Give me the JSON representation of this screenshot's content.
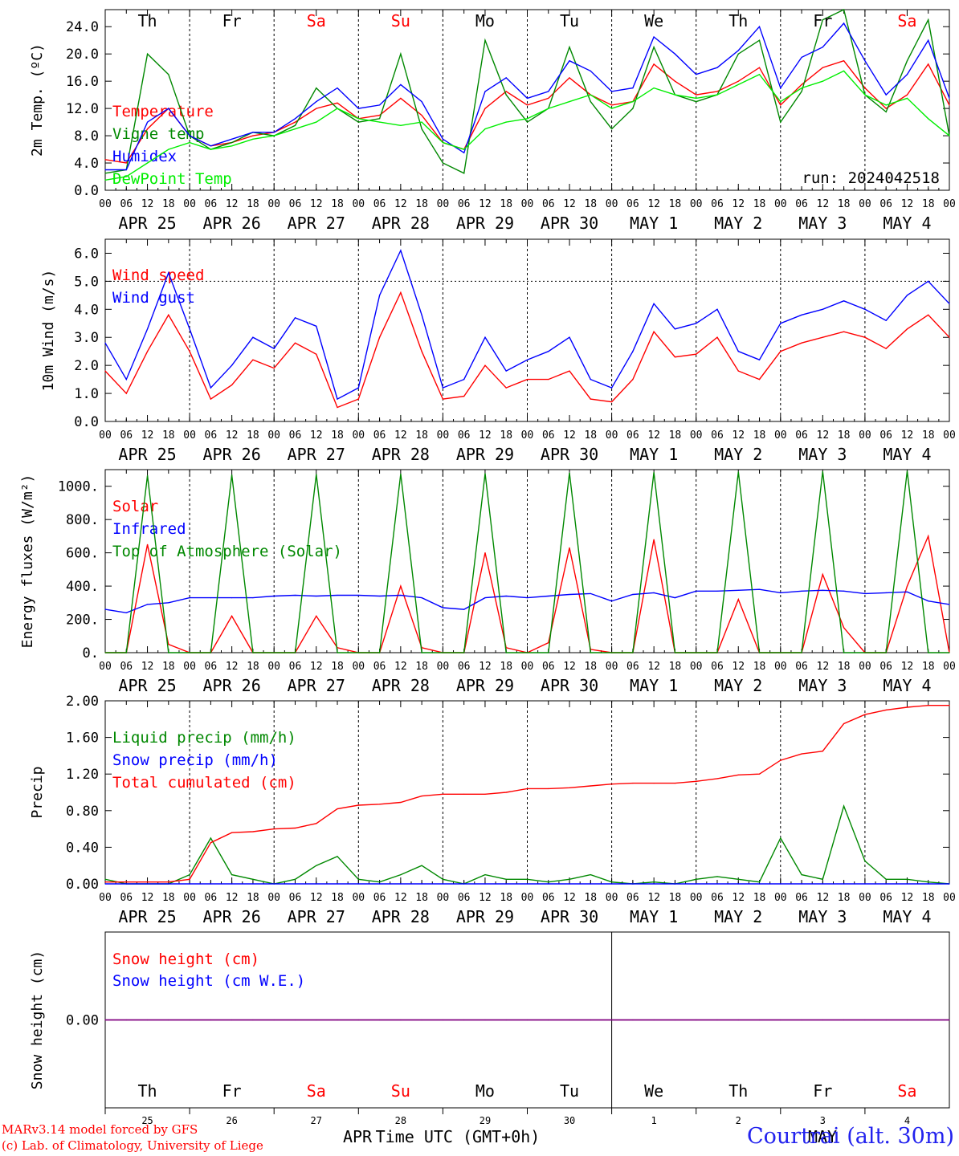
{
  "run_label": "run: 2024042518",
  "footer": {
    "credit_line1": "MARv3.14 model forced by GFS",
    "credit_line2": "(c) Lab. of Climatology, University of Liege",
    "time_label": "Time UTC (GMT+0h)",
    "month_left": "APR",
    "month_right": "MAY",
    "station": "Courtrai (alt. 30m)"
  },
  "days": [
    {
      "dow": "Th",
      "dow_color": "#000000",
      "date": "APR 25",
      "daynum": "25"
    },
    {
      "dow": "Fr",
      "dow_color": "#000000",
      "date": "APR 26",
      "daynum": "26"
    },
    {
      "dow": "Sa",
      "dow_color": "#ff0000",
      "date": "APR 27",
      "daynum": "27"
    },
    {
      "dow": "Su",
      "dow_color": "#ff0000",
      "date": "APR 28",
      "daynum": "28"
    },
    {
      "dow": "Mo",
      "dow_color": "#000000",
      "date": "APR 29",
      "daynum": "29"
    },
    {
      "dow": "Tu",
      "dow_color": "#000000",
      "date": "APR 30",
      "daynum": "30"
    },
    {
      "dow": "We",
      "dow_color": "#000000",
      "date": "MAY  1",
      "daynum": "1"
    },
    {
      "dow": "Th",
      "dow_color": "#000000",
      "date": "MAY  2",
      "daynum": "2"
    },
    {
      "dow": "Fr",
      "dow_color": "#000000",
      "date": "MAY  3",
      "daynum": "3"
    },
    {
      "dow": "Sa",
      "dow_color": "#ff0000",
      "date": "MAY  4",
      "daynum": "4"
    }
  ],
  "hour_labels": [
    "00",
    "06",
    "12",
    "18"
  ],
  "colors": {
    "red": "#ff0000",
    "green": "#008800",
    "blue": "#0000ff",
    "lightgreen": "#00ee00",
    "purple": "#800080"
  },
  "chart_data": [
    {
      "type": "line",
      "ylabel": "2m Temp. (ºC)",
      "ylim": [
        0,
        26.5
      ],
      "yticks": [
        "0.0",
        "4.0",
        "8.0",
        "12.0",
        "16.0",
        "20.0",
        "24.0"
      ],
      "ytick_values": [
        0,
        4,
        8,
        12,
        16,
        20,
        24
      ],
      "x": [
        "2024-04-25 00",
        "2024-04-25 06",
        "2024-04-25 12",
        "2024-04-25 18",
        "2024-04-26 00",
        "2024-04-26 06",
        "2024-04-26 12",
        "2024-04-26 18",
        "2024-04-27 00",
        "2024-04-27 06",
        "2024-04-27 12",
        "2024-04-27 18",
        "2024-04-28 00",
        "2024-04-28 06",
        "2024-04-28 12",
        "2024-04-28 18",
        "2024-04-29 00",
        "2024-04-29 06",
        "2024-04-29 12",
        "2024-04-29 18",
        "2024-04-30 00",
        "2024-04-30 06",
        "2024-04-30 12",
        "2024-04-30 18",
        "2024-05-01 00",
        "2024-05-01 06",
        "2024-05-01 12",
        "2024-05-01 18",
        "2024-05-02 00",
        "2024-05-02 06",
        "2024-05-02 12",
        "2024-05-02 18",
        "2024-05-03 00",
        "2024-05-03 06",
        "2024-05-03 12",
        "2024-05-03 18",
        "2024-05-04 00",
        "2024-05-04 06",
        "2024-05-04 12",
        "2024-05-04 18",
        "2024-05-05 00"
      ],
      "series": [
        {
          "name": "Temperature",
          "color": "#ff0000",
          "values": [
            4.5,
            4.0,
            9.0,
            12.0,
            8.0,
            6.5,
            7.0,
            8.0,
            8.5,
            10.0,
            12.0,
            12.8,
            10.5,
            11.0,
            13.5,
            11.0,
            7.0,
            6.0,
            12.0,
            14.5,
            12.5,
            13.5,
            16.5,
            14.0,
            12.5,
            13.0,
            18.5,
            16.0,
            14.0,
            14.5,
            16.0,
            18.0,
            12.5,
            15.5,
            18.0,
            19.0,
            15.0,
            12.0,
            14.0,
            18.5,
            12.5
          ]
        },
        {
          "name": "Vigne temp",
          "color": "#008800",
          "values": [
            2.5,
            3.0,
            20.0,
            17.0,
            8.0,
            6.0,
            7.0,
            8.5,
            8.0,
            9.5,
            15.0,
            12.0,
            10.0,
            10.5,
            20.0,
            9.0,
            4.0,
            2.5,
            22.0,
            14.0,
            10.0,
            12.0,
            21.0,
            13.0,
            9.0,
            12.0,
            21.0,
            14.0,
            13.0,
            14.0,
            20.0,
            22.0,
            10.0,
            14.5,
            25.0,
            26.5,
            14.0,
            11.5,
            19.0,
            25.0,
            8.0
          ]
        },
        {
          "name": "Humidex",
          "color": "#0000ff",
          "values": [
            3.0,
            3.0,
            10.0,
            12.0,
            8.0,
            6.5,
            7.5,
            8.5,
            8.5,
            10.5,
            13.0,
            15.0,
            12.0,
            12.5,
            15.5,
            13.0,
            7.5,
            5.5,
            14.5,
            16.5,
            13.5,
            14.5,
            19.0,
            17.5,
            14.5,
            15.0,
            22.5,
            20.0,
            17.0,
            18.0,
            20.5,
            24.0,
            15.0,
            19.5,
            21.0,
            24.5,
            19.0,
            14.0,
            17.0,
            22.0,
            13.5
          ]
        },
        {
          "name": "DewPoint Temp",
          "color": "#00ee00",
          "values": [
            1.5,
            2.0,
            4.0,
            6.0,
            7.0,
            6.0,
            6.5,
            7.5,
            8.0,
            9.0,
            10.0,
            12.0,
            10.5,
            10.0,
            9.5,
            10.0,
            7.0,
            6.0,
            9.0,
            10.0,
            10.5,
            12.0,
            13.0,
            14.0,
            12.0,
            13.0,
            15.0,
            14.0,
            13.5,
            14.0,
            15.5,
            17.0,
            13.0,
            15.0,
            16.0,
            17.5,
            14.0,
            12.5,
            13.5,
            10.5,
            8.0
          ]
        }
      ]
    },
    {
      "type": "line",
      "ylabel": "10m Wind (m/s)",
      "ylim": [
        0,
        6.5
      ],
      "yticks": [
        "0.0",
        "1.0",
        "2.0",
        "3.0",
        "4.0",
        "5.0",
        "6.0"
      ],
      "ytick_values": [
        0,
        1,
        2,
        3,
        4,
        5,
        6
      ],
      "reference_line": 5.0,
      "series": [
        {
          "name": "Wind speed",
          "color": "#ff0000",
          "values": [
            1.8,
            1.0,
            2.5,
            3.8,
            2.5,
            0.8,
            1.3,
            2.2,
            1.9,
            2.8,
            2.4,
            0.5,
            0.8,
            3.0,
            4.6,
            2.5,
            0.8,
            0.9,
            2.0,
            1.2,
            1.5,
            1.5,
            1.8,
            0.8,
            0.7,
            1.5,
            3.2,
            2.3,
            2.4,
            3.0,
            1.8,
            1.5,
            2.5,
            2.8,
            3.0,
            3.2,
            3.0,
            2.6,
            3.3,
            3.8,
            3.0
          ]
        },
        {
          "name": "Wind gust",
          "color": "#0000ff",
          "values": [
            2.8,
            1.5,
            3.3,
            5.3,
            3.3,
            1.2,
            2.0,
            3.0,
            2.6,
            3.7,
            3.4,
            0.8,
            1.2,
            4.5,
            6.1,
            3.8,
            1.2,
            1.5,
            3.0,
            1.8,
            2.2,
            2.5,
            3.0,
            1.5,
            1.2,
            2.5,
            4.2,
            3.3,
            3.5,
            4.0,
            2.5,
            2.2,
            3.5,
            3.8,
            4.0,
            4.3,
            4.0,
            3.6,
            4.5,
            5.0,
            4.2
          ]
        }
      ]
    },
    {
      "type": "line",
      "ylabel": "Energy fluxes (W/m²)",
      "ylim": [
        0,
        1100
      ],
      "yticks": [
        "0.",
        "200.",
        "400.",
        "600.",
        "800.",
        "1000."
      ],
      "ytick_values": [
        0,
        200,
        400,
        600,
        800,
        1000
      ],
      "series": [
        {
          "name": "Solar",
          "color": "#ff0000",
          "values": [
            0,
            0,
            650,
            50,
            0,
            0,
            220,
            0,
            0,
            0,
            220,
            30,
            0,
            0,
            400,
            30,
            0,
            0,
            600,
            30,
            0,
            60,
            630,
            20,
            0,
            0,
            680,
            0,
            0,
            0,
            320,
            0,
            0,
            0,
            470,
            150,
            0,
            0,
            400,
            700,
            0
          ]
        },
        {
          "name": "Infrared",
          "color": "#0000ff",
          "values": [
            260,
            240,
            290,
            300,
            330,
            330,
            330,
            330,
            340,
            345,
            340,
            345,
            345,
            340,
            345,
            330,
            270,
            260,
            330,
            340,
            330,
            340,
            350,
            355,
            310,
            350,
            360,
            330,
            370,
            370,
            375,
            380,
            360,
            370,
            375,
            370,
            355,
            360,
            365,
            310,
            290
          ]
        },
        {
          "name": "Top of Atmosphere (Solar)",
          "color": "#008800",
          "values": [
            0,
            0,
            1065,
            0,
            0,
            0,
            1068,
            0,
            0,
            0,
            1071,
            0,
            0,
            0,
            1074,
            0,
            0,
            0,
            1077,
            0,
            0,
            0,
            1080,
            0,
            0,
            0,
            1083,
            0,
            0,
            0,
            1086,
            0,
            0,
            0,
            1089,
            0,
            0,
            0,
            1092,
            0,
            0
          ]
        }
      ]
    },
    {
      "type": "line",
      "ylabel": "Precip",
      "ylim": [
        0,
        2.0
      ],
      "yticks": [
        "0.00",
        "0.40",
        "0.80",
        "1.20",
        "1.60",
        "2.00"
      ],
      "ytick_values": [
        0,
        0.4,
        0.8,
        1.2,
        1.6,
        2.0
      ],
      "series": [
        {
          "name": "Liquid precip (mm/h)",
          "color": "#008800",
          "values": [
            0.05,
            0,
            0,
            0,
            0.1,
            0.5,
            0.1,
            0.05,
            0,
            0.05,
            0.2,
            0.3,
            0.05,
            0.02,
            0.1,
            0.2,
            0.05,
            0,
            0.1,
            0.05,
            0.05,
            0.02,
            0.05,
            0.1,
            0.02,
            0,
            0.02,
            0,
            0.05,
            0.08,
            0.05,
            0.02,
            0.5,
            0.1,
            0.05,
            0.85,
            0.25,
            0.05,
            0.05,
            0.02,
            0
          ]
        },
        {
          "name": "Snow precip (mm/h)",
          "color": "#0000ff",
          "values": [
            0,
            0,
            0,
            0,
            0,
            0,
            0,
            0,
            0,
            0,
            0,
            0,
            0,
            0,
            0,
            0,
            0,
            0,
            0,
            0,
            0,
            0,
            0,
            0,
            0,
            0,
            0,
            0,
            0,
            0,
            0,
            0,
            0,
            0,
            0,
            0,
            0,
            0,
            0,
            0,
            0
          ]
        },
        {
          "name": "Total cumulated (cm)",
          "color": "#ff0000",
          "values": [
            0.02,
            0.02,
            0.02,
            0.02,
            0.05,
            0.45,
            0.56,
            0.57,
            0.6,
            0.61,
            0.66,
            0.82,
            0.86,
            0.87,
            0.89,
            0.96,
            0.98,
            0.98,
            0.98,
            1.0,
            1.04,
            1.04,
            1.05,
            1.07,
            1.09,
            1.1,
            1.1,
            1.1,
            1.12,
            1.15,
            1.19,
            1.2,
            1.35,
            1.42,
            1.45,
            1.75,
            1.85,
            1.9,
            1.93,
            1.95,
            1.95
          ]
        }
      ]
    },
    {
      "type": "line",
      "ylabel": "Snow height (cm)",
      "ylim": [
        -1,
        1
      ],
      "yticks": [
        "0.00"
      ],
      "ytick_values": [
        0
      ],
      "series": [
        {
          "name": "Snow height (cm)",
          "color": "#ff0000",
          "values": [
            0,
            0,
            0,
            0,
            0,
            0,
            0,
            0,
            0,
            0,
            0,
            0,
            0,
            0,
            0,
            0,
            0,
            0,
            0,
            0,
            0,
            0,
            0,
            0,
            0,
            0,
            0,
            0,
            0,
            0,
            0,
            0,
            0,
            0,
            0,
            0,
            0,
            0,
            0,
            0,
            0
          ]
        },
        {
          "name": "Snow height (cm W.E.)",
          "color": "#0000ff",
          "values": [
            0,
            0,
            0,
            0,
            0,
            0,
            0,
            0,
            0,
            0,
            0,
            0,
            0,
            0,
            0,
            0,
            0,
            0,
            0,
            0,
            0,
            0,
            0,
            0,
            0,
            0,
            0,
            0,
            0,
            0,
            0,
            0,
            0,
            0,
            0,
            0,
            0,
            0,
            0,
            0,
            0
          ]
        }
      ]
    }
  ]
}
